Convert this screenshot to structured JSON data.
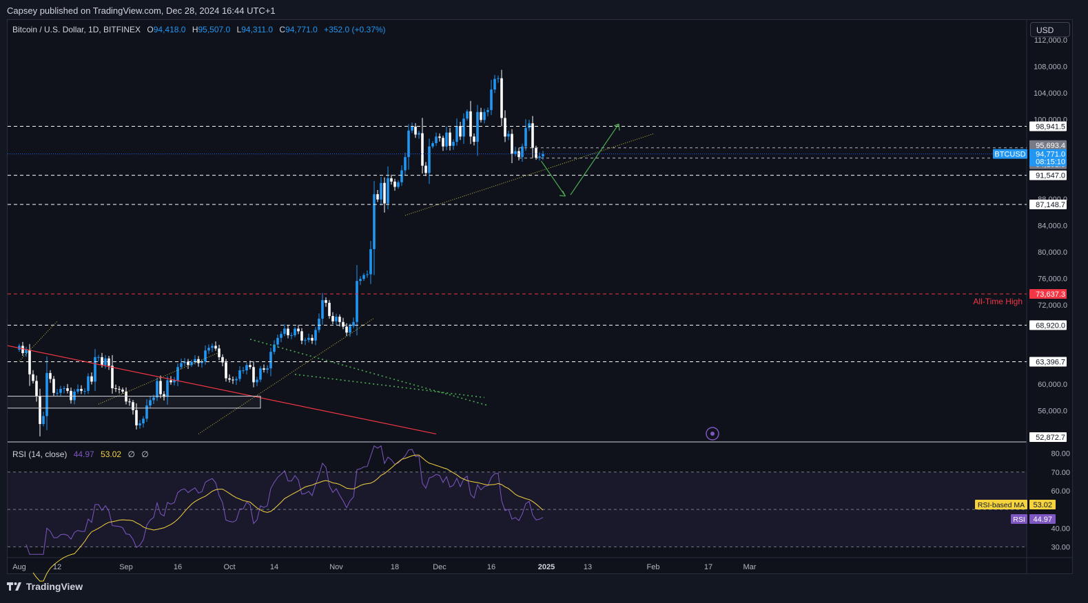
{
  "header": {
    "published": "Capsey published on TradingView.com, Dec 28, 2024 16:44 UTC+1"
  },
  "legend": {
    "symbol": "Bitcoin / U.S. Dollar, 1D, BITFINEX",
    "o_label": "O",
    "o": "94,418.0",
    "h_label": "H",
    "h": "95,507.0",
    "l_label": "L",
    "l": "94,311.0",
    "c_label": "C",
    "c": "94,771.0",
    "change": "+352.0 (+0.37%)"
  },
  "currency_button": "USD",
  "rsi_legend": {
    "title": "RSI (14, close)",
    "rsi": "44.97",
    "ma": "53.02",
    "icon1": "∅",
    "icon2": "∅"
  },
  "footer": {
    "brand": "TradingView"
  },
  "colors": {
    "up": "#2196f3",
    "down": "#ffffff",
    "ath": "#f23645",
    "rsi": "#7e57c2",
    "rsi_ma": "#f5d33f",
    "bg": "#0f121b"
  },
  "chart_data": [
    {
      "type": "candlestick",
      "title": "Bitcoin / U.S. Dollar, 1D, BITFINEX",
      "ylim": [
        51400,
        115000
      ],
      "price_ticks": [
        "112,000.0",
        "108,000.0",
        "104,000.0",
        "100,000.0",
        "88,000.0",
        "84,000.0",
        "80,000.0",
        "76,000.0",
        "72,000.0",
        "60,000.0",
        "56,000.0"
      ],
      "x_ticks": [
        {
          "label": "Aug",
          "day": 0
        },
        {
          "label": "12",
          "day": 11
        },
        {
          "label": "Sep",
          "day": 31
        },
        {
          "label": "16",
          "day": 46
        },
        {
          "label": "Oct",
          "day": 61
        },
        {
          "label": "14",
          "day": 74
        },
        {
          "label": "Nov",
          "day": 92
        },
        {
          "label": "18",
          "day": 109
        },
        {
          "label": "Dec",
          "day": 122
        },
        {
          "label": "16",
          "day": 137
        },
        {
          "label": "2025",
          "day": 153
        },
        {
          "label": "13",
          "day": 165
        },
        {
          "label": "Feb",
          "day": 184
        },
        {
          "label": "17",
          "day": 200
        },
        {
          "label": "Mar",
          "day": 212
        }
      ],
      "closes": [
        65800,
        64700,
        65200,
        61500,
        60500,
        58200,
        54000,
        55200,
        61700,
        60800,
        58700,
        58700,
        59300,
        59400,
        59000,
        57600,
        58900,
        59300,
        59000,
        59000,
        61200,
        60400,
        64100,
        64100,
        62900,
        63900,
        62800,
        59400,
        59300,
        59200,
        58900,
        57400,
        57300,
        56100,
        53800,
        54100,
        54800,
        56800,
        57600,
        58000,
        60500,
        58500,
        58100,
        60600,
        60300,
        60600,
        62600,
        63200,
        63400,
        62900,
        63400,
        63800,
        63200,
        63400,
        65100,
        65500,
        65800,
        65400,
        64100,
        63300,
        60900,
        60700,
        60600,
        60800,
        62100,
        62100,
        62900,
        62600,
        60300,
        60700,
        62400,
        62200,
        62400,
        64900,
        66000,
        67000,
        67600,
        68400,
        67400,
        67400,
        68400,
        68000,
        66600,
        66700,
        67000,
        66600,
        68200,
        69900,
        72700,
        72300,
        70300,
        69500,
        70200,
        69400,
        68700,
        67800,
        68800,
        69400,
        75600,
        75900,
        76500,
        76600,
        80400,
        88700,
        87900,
        90400,
        87300,
        91100,
        90600,
        89800,
        90500,
        92300,
        94300,
        98300,
        98900,
        97700,
        97900,
        93000,
        91900,
        95900,
        96400,
        97400,
        97200,
        95900,
        98000,
        96000,
        96600,
        99000,
        97400,
        100100,
        101200,
        97400,
        96600,
        101100,
        99900,
        101100,
        101400,
        104500,
        106100,
        106200,
        100200,
        97400,
        97800,
        94800,
        95200,
        94300,
        95900,
        98700,
        99400,
        95700,
        94200,
        94400,
        94771
      ],
      "levels": [
        "98,941.5",
        "95,693.4",
        "94,771.0",
        "94,151.5",
        "91,547.0",
        "87,148.7",
        "73,637.3",
        "68,920.0",
        "63,396.7",
        "52,872.7"
      ],
      "current_label": "BTCUSD",
      "countdown": "08:15:10",
      "ath_text": "All-Time High",
      "rsi_ticks": [
        "80.00",
        "70.00",
        "60.00",
        "40.00",
        "30.00"
      ],
      "rsi_ylim": [
        25,
        85
      ],
      "rsi_ma_tag": "RSI-based MA",
      "rsi_ma_value": "53.02",
      "rsi_tag": "RSI",
      "rsi_value": "44.97"
    }
  ]
}
